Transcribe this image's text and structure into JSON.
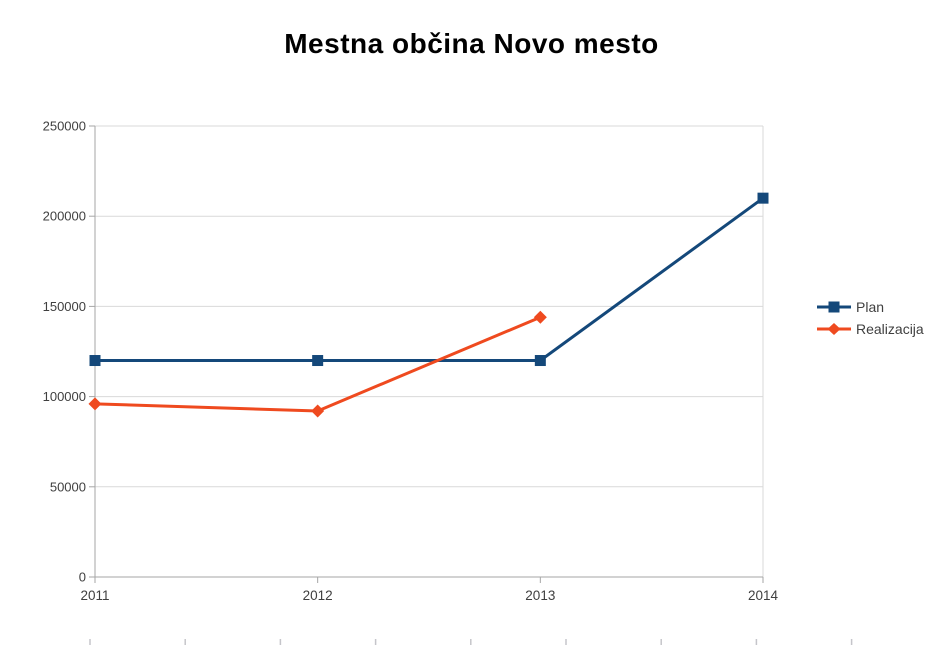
{
  "title": "Mestna občina Novo mesto",
  "chart_data": {
    "type": "line",
    "title": "Mestna občina Novo mesto",
    "categories": [
      "2011",
      "2012",
      "2013",
      "2014"
    ],
    "series": [
      {
        "name": "Plan",
        "values": [
          120000,
          120000,
          120000,
          210000
        ],
        "color": "#14487A",
        "marker": "square"
      },
      {
        "name": "Realizacija",
        "values": [
          96000,
          92000,
          144000,
          null
        ],
        "color": "#EF4A1F",
        "marker": "diamond"
      }
    ],
    "ylim": [
      0,
      250000
    ],
    "ytick_step": 50000,
    "ytick_labels": [
      "0",
      "50000",
      "100000",
      "150000",
      "200000",
      "250000"
    ],
    "xlabel": "",
    "ylabel": "",
    "legend_position": "right-middle",
    "grid": "horizontal"
  },
  "colors": {
    "background": "#FFFFFF",
    "gridline": "#D9D9D9",
    "axis": "#A6A6A6",
    "tick_label": "#3F3F3F",
    "legend_text": "#3F3F3F",
    "title_text": "#000000",
    "ruler_tick": "#C5C5CA"
  },
  "bottom_ruler": {
    "tick_count": 10
  }
}
